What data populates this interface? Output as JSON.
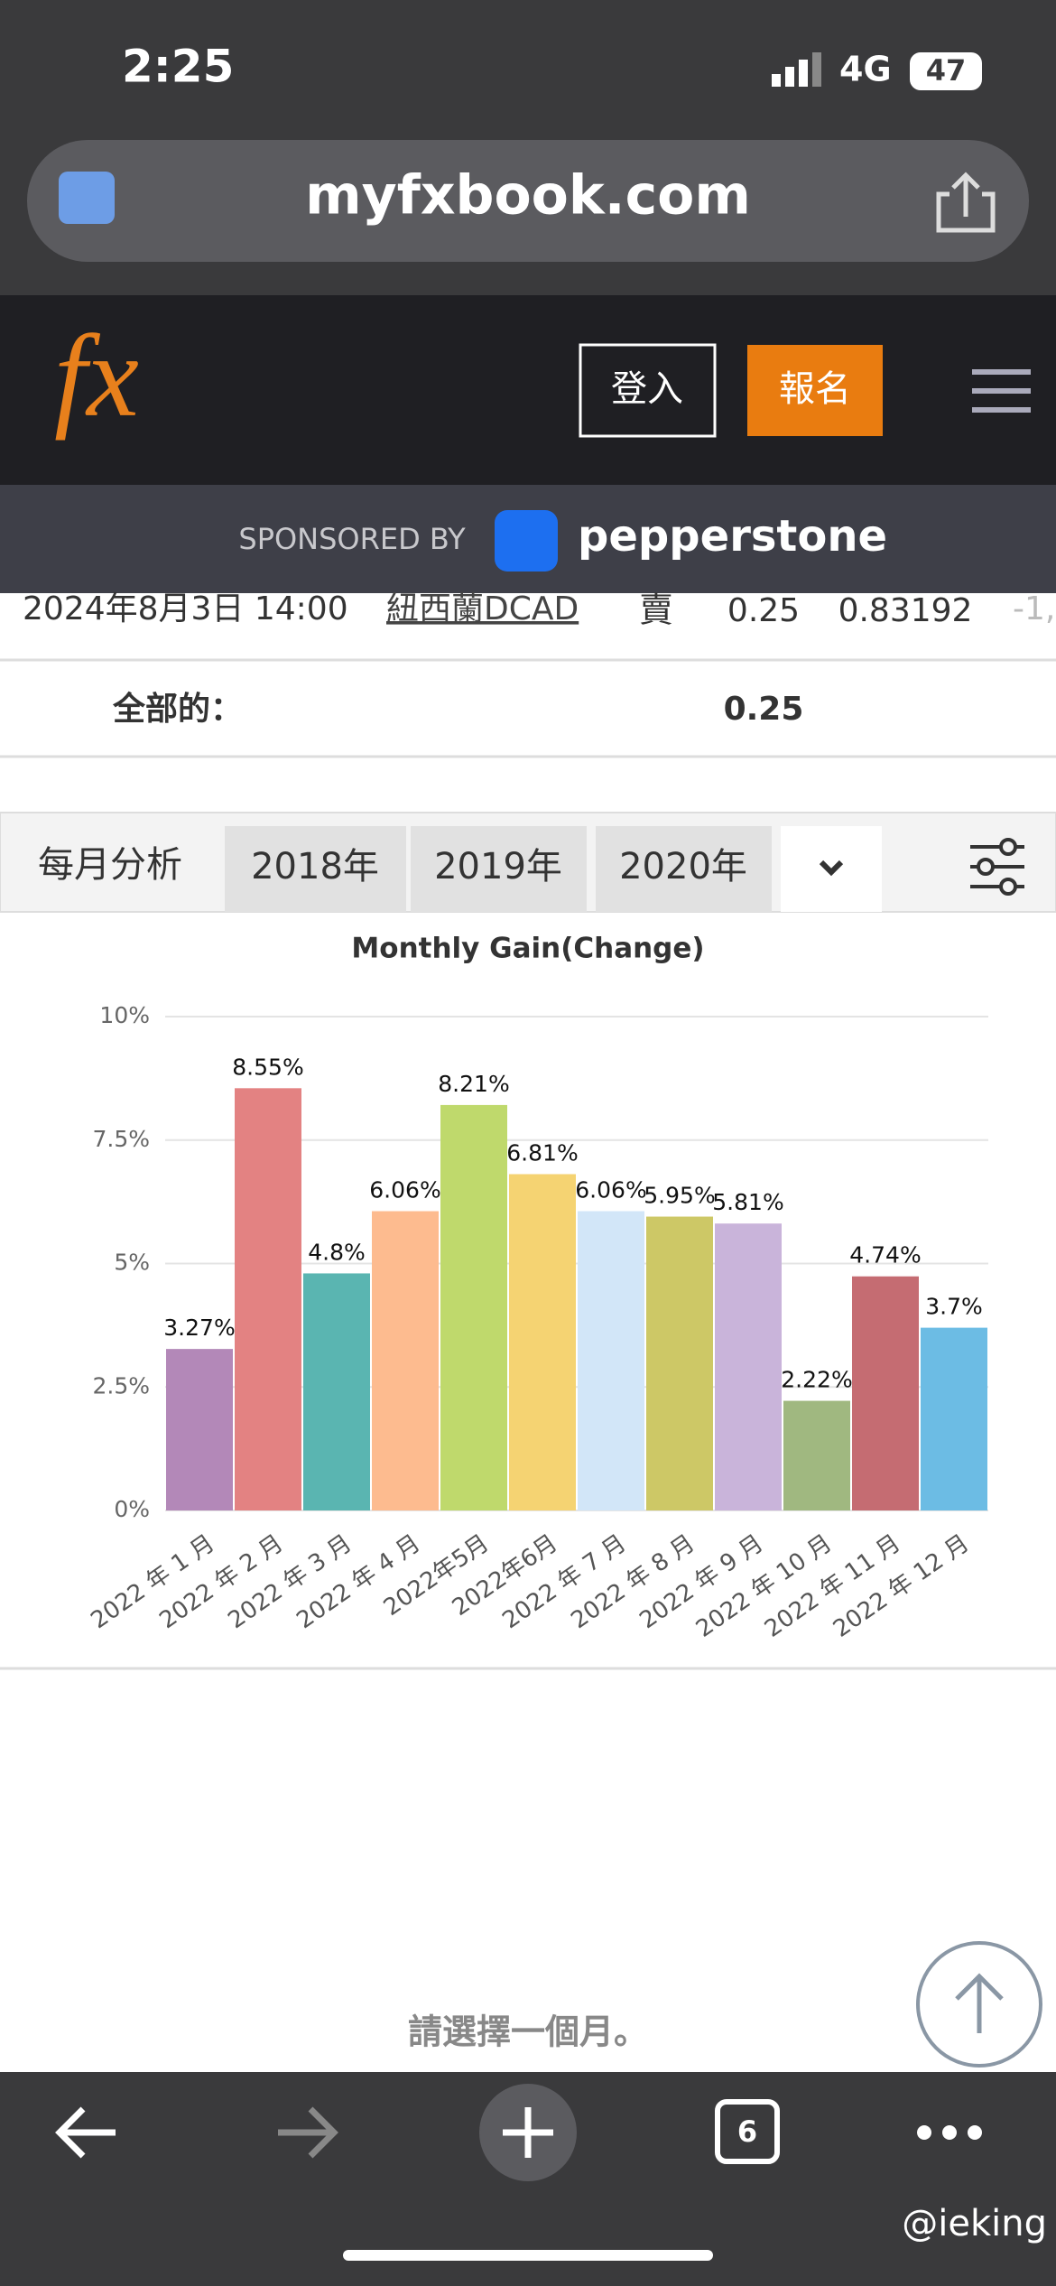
{
  "status_bar": {
    "time": "2:25",
    "network": "4G",
    "battery": "47"
  },
  "browser": {
    "url": "myfxbook.com"
  },
  "site_header": {
    "logo": "fx",
    "login": "登入",
    "signup": "報名"
  },
  "sponsor": {
    "label": "SPONSORED BY",
    "brand": "pepperstone"
  },
  "table": {
    "row": [
      "2024年8月3日 14:00",
      "紐西蘭DCAD",
      "賣",
      "0.25",
      "0.83192",
      "-1,"
    ],
    "total_label": "全部的：",
    "total_value": "0.25"
  },
  "monthly": {
    "label": "每月分析",
    "tabs": [
      "2018年",
      "2019年",
      "2020年"
    ]
  },
  "chart_data": {
    "type": "bar",
    "title": "Monthly Gain(Change)",
    "categories": [
      "2022 年 1 月",
      "2022 年 2 月",
      "2022 年 3 月",
      "2022 年 4 月",
      "2022年5月",
      "2022年6月",
      "2022 年 7 月",
      "2022 年 8 月",
      "2022 年 9 月",
      "2022 年 10 月",
      "2022 年 11 月",
      "2022 年 12 月"
    ],
    "values": [
      3.27,
      8.55,
      4.8,
      6.06,
      8.21,
      6.81,
      6.06,
      5.95,
      5.81,
      2.22,
      4.74,
      3.7
    ],
    "value_labels": [
      "3.27%",
      "8.55%",
      "4.8%",
      "6.06%",
      "8.21%",
      "6.81%",
      "6.06%",
      "5.95%",
      "5.81%",
      "2.22%",
      "4.74%",
      "3.7%"
    ],
    "colors": [
      "#b388b8",
      "#e38282",
      "#5ab5b1",
      "#fdbb8f",
      "#bfd96c",
      "#f5d372",
      "#d2e6f8",
      "#cdc866",
      "#c9b4da",
      "#a0b880",
      "#c56c72",
      "#6cbce4"
    ],
    "ylim": [
      0,
      10
    ],
    "yticks": [
      {
        "value": 0,
        "label": "0%"
      },
      {
        "value": 2.5,
        "label": "2.5%"
      },
      {
        "value": 5,
        "label": "5%"
      },
      {
        "value": 7.5,
        "label": "7.5%"
      },
      {
        "value": 10,
        "label": "10%"
      }
    ],
    "grid": true
  },
  "footer_hint": "請選擇一個月。",
  "toolbar": {
    "tabs_count": 6
  },
  "watermark": "@ieking"
}
